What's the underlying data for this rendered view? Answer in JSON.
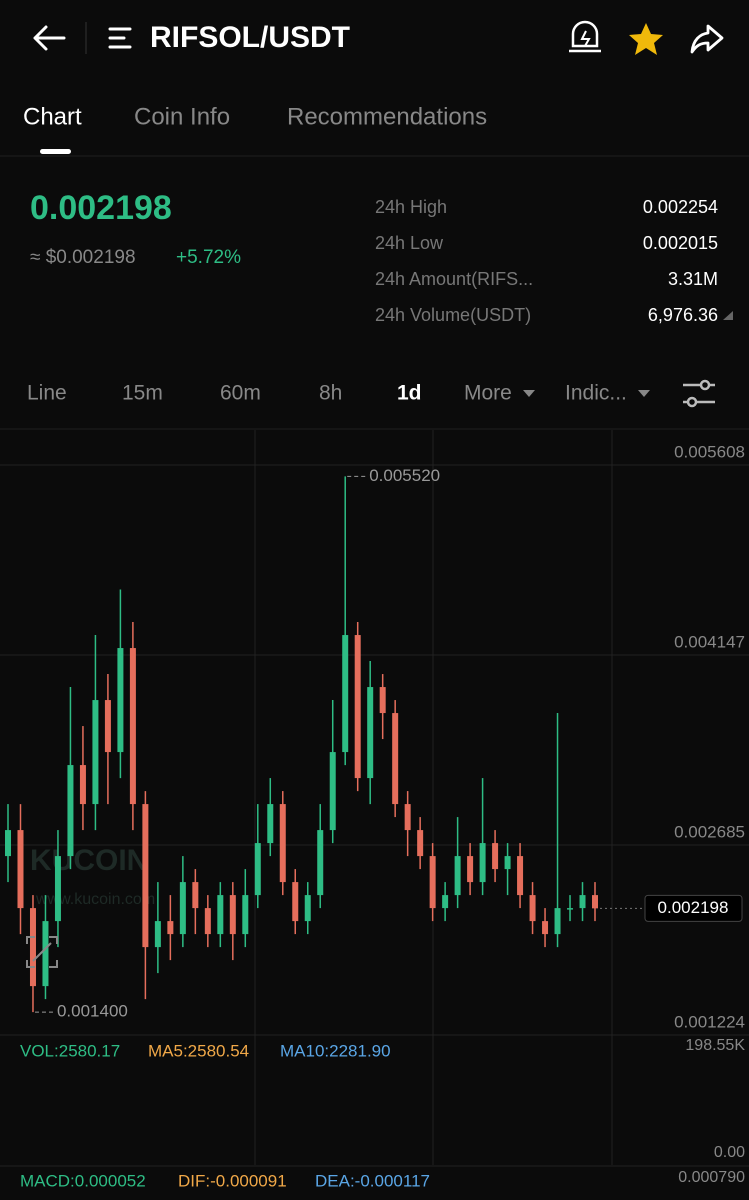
{
  "header": {
    "title": "RIFSOL/USDT"
  },
  "tabs": [
    "Chart",
    "Coin Info",
    "Recommendations"
  ],
  "ticker": {
    "price": "0.002198",
    "fiat": "≈ $0.002198",
    "change": "+5.72%"
  },
  "stats": [
    {
      "label": "24h High",
      "value": "0.002254"
    },
    {
      "label": "24h Low",
      "value": "0.002015"
    },
    {
      "label": "24h Amount(RIFS...",
      "value": "3.31M"
    },
    {
      "label": "24h Volume(USDT)",
      "value": "6,976.36"
    }
  ],
  "intervals": [
    "Line",
    "15m",
    "60m",
    "8h",
    "1d",
    "More",
    "Indic..."
  ],
  "watermark": {
    "brand": "KUCOIN",
    "url": "www.kucoin.com"
  },
  "chart_data": {
    "type": "candlestick",
    "ylim": [
      0.001224,
      0.005877
    ],
    "yticks": [
      0.005608,
      0.004147,
      0.002685,
      0.001224
    ],
    "high_marker": {
      "value": 0.00552,
      "label": "0.005520"
    },
    "low_marker": {
      "value": 0.0014,
      "label": "0.001400"
    },
    "last_price": 0.002198,
    "up_color": "#2ebd85",
    "down_color": "#e56e5c",
    "open": [
      0.0026,
      0.0028,
      0.0022,
      0.0016,
      0.0021,
      0.0026,
      0.0033,
      0.003,
      0.0038,
      0.0034,
      0.0042,
      0.003,
      0.0019,
      0.0021,
      0.002,
      0.0024,
      0.0022,
      0.002,
      0.0023,
      0.002,
      0.0023,
      0.0027,
      0.003,
      0.0024,
      0.0021,
      0.0023,
      0.0028,
      0.0034,
      0.0043,
      0.0032,
      0.0039,
      0.0037,
      0.003,
      0.0028,
      0.0026,
      0.0022,
      0.0023,
      0.0026,
      0.0024,
      0.0027,
      0.0025,
      0.0026,
      0.0023,
      0.0021,
      0.002,
      0.0022,
      0.0022,
      0.0023
    ],
    "high": [
      0.003,
      0.003,
      0.0023,
      0.0023,
      0.0028,
      0.0039,
      0.0036,
      0.0043,
      0.004,
      0.00465,
      0.0044,
      0.0031,
      0.0024,
      0.0023,
      0.0026,
      0.0025,
      0.0023,
      0.0024,
      0.0024,
      0.0025,
      0.003,
      0.0032,
      0.0031,
      0.0025,
      0.0024,
      0.003,
      0.0038,
      0.00552,
      0.0044,
      0.0041,
      0.004,
      0.0038,
      0.0031,
      0.0029,
      0.0027,
      0.0024,
      0.0029,
      0.0027,
      0.0032,
      0.0028,
      0.0027,
      0.0027,
      0.0024,
      0.0022,
      0.0037,
      0.0023,
      0.0024,
      0.0024
    ],
    "low": [
      0.0024,
      0.002,
      0.0014,
      0.0015,
      0.0019,
      0.0025,
      0.0028,
      0.0028,
      0.003,
      0.0032,
      0.0028,
      0.0015,
      0.0017,
      0.0018,
      0.0019,
      0.002,
      0.0019,
      0.0019,
      0.0018,
      0.0019,
      0.0022,
      0.0026,
      0.0023,
      0.002,
      0.002,
      0.0022,
      0.0027,
      0.0033,
      0.0031,
      0.003,
      0.0035,
      0.0029,
      0.0026,
      0.0025,
      0.0021,
      0.0021,
      0.0022,
      0.0023,
      0.0023,
      0.0024,
      0.0023,
      0.0022,
      0.002,
      0.0019,
      0.0019,
      0.0021,
      0.0021,
      0.0021
    ],
    "close": [
      0.0028,
      0.0022,
      0.0016,
      0.0021,
      0.0026,
      0.0033,
      0.003,
      0.0038,
      0.0034,
      0.0042,
      0.003,
      0.0019,
      0.0021,
      0.002,
      0.0024,
      0.0022,
      0.002,
      0.0023,
      0.002,
      0.0023,
      0.0027,
      0.003,
      0.0024,
      0.0021,
      0.0023,
      0.0028,
      0.0034,
      0.0043,
      0.0032,
      0.0039,
      0.0037,
      0.003,
      0.0028,
      0.0026,
      0.0022,
      0.0023,
      0.0026,
      0.0024,
      0.0027,
      0.0025,
      0.0026,
      0.0023,
      0.0021,
      0.002,
      0.0022,
      0.0022,
      0.0023,
      0.002198
    ]
  },
  "volume": {
    "vol": "VOL:2580.17",
    "ma5": "MA5:2580.54",
    "ma10": "MA10:2281.90",
    "top": "198.55K",
    "bottom": "0.00"
  },
  "macd": {
    "macd": "MACD:0.000052",
    "dif": "DIF:-0.000091",
    "dea": "DEA:-0.000117",
    "top": "0.000790"
  }
}
